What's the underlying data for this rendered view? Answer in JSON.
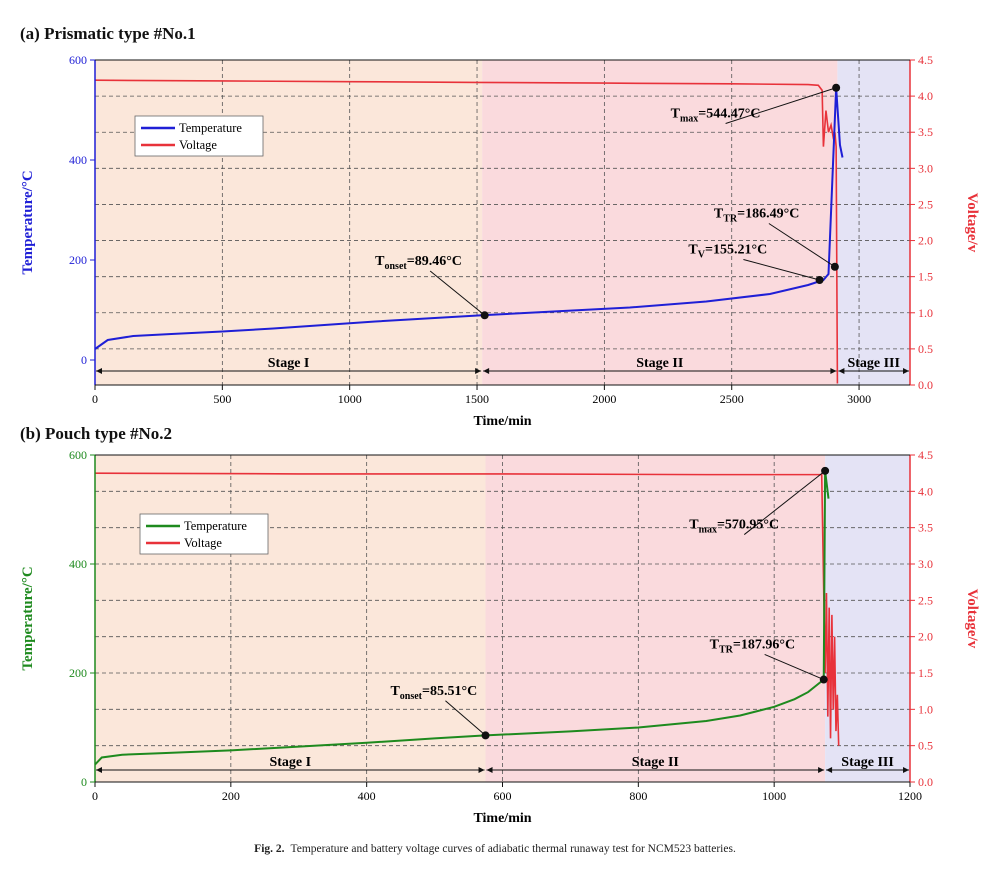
{
  "caption": {
    "label": "Fig. 2.",
    "text": "Temperature and battery voltage curves of adiabatic thermal runaway test for NCM523 batteries."
  },
  "chart_data": [
    {
      "type": "line",
      "title": "(a) Prismatic type #No.1",
      "xlabel": "Time/min",
      "ylabel": "Temperature/°C",
      "ylabel_right": "Voltage/v",
      "xlim": [
        0,
        3200
      ],
      "ylim": [
        -50,
        600
      ],
      "ylim_right": [
        0,
        4.5
      ],
      "xticks": [
        0,
        500,
        1000,
        1500,
        2000,
        2500,
        3000
      ],
      "yticks": [
        0,
        200,
        400,
        600
      ],
      "yticks_right": [
        "0.0",
        "0.5",
        "1.0",
        "1.5",
        "2.0",
        "2.5",
        "3.0",
        "3.5",
        "4.0",
        "4.5"
      ],
      "grid": true,
      "legend_placement": "upper-left",
      "colors": {
        "temperature": "#1f1fd6",
        "voltage": "#e8323a",
        "stage1": "#fbe7da",
        "stage2": "#fadadd",
        "stage3": "#e4e3f5"
      },
      "stages": [
        {
          "label": "Stage I",
          "x_start": 0,
          "x_end": 1520
        },
        {
          "label": "Stage II",
          "x_start": 1520,
          "x_end": 2915
        },
        {
          "label": "Stage III",
          "x_start": 2915,
          "x_end": 3200
        }
      ],
      "series": [
        {
          "name": "Temperature",
          "axis": "left",
          "x": [
            0,
            50,
            150,
            300,
            500,
            700,
            900,
            1100,
            1300,
            1520,
            1800,
            2100,
            2400,
            2650,
            2800,
            2860,
            2880,
            2910,
            2925,
            2935
          ],
          "y": [
            22,
            40,
            48,
            52,
            57,
            63,
            70,
            77,
            83,
            89.46,
            97,
            105,
            117,
            132,
            150,
            160,
            172,
            544.47,
            430,
            405
          ]
        },
        {
          "name": "Voltage",
          "axis": "right",
          "x": [
            0,
            500,
            1000,
            1500,
            2000,
            2500,
            2800,
            2840,
            2855,
            2860,
            2870,
            2880,
            2890,
            2900,
            2905,
            2910,
            2915
          ],
          "y": [
            4.22,
            4.21,
            4.2,
            4.19,
            4.18,
            4.17,
            4.16,
            4.15,
            4.08,
            3.3,
            3.8,
            3.5,
            3.6,
            3.4,
            3.5,
            3.3,
            0.02
          ]
        }
      ],
      "annotations": [
        {
          "label": "T",
          "sub": "onset",
          "value": "=89.46°C",
          "x": 1530,
          "y": 89.46,
          "text_x": 1100,
          "text_y": 190
        },
        {
          "label": "T",
          "sub": "V",
          "value": "=155.21°C",
          "x": 2845,
          "y": 160,
          "text_x": 2330,
          "text_y": 213
        },
        {
          "label": "T",
          "sub": "TR",
          "value": "=186.49°C",
          "x": 2905,
          "y": 186.49,
          "text_x": 2430,
          "text_y": 285
        },
        {
          "label": "T",
          "sub": "max",
          "value": "=544.47°C",
          "x": 2910,
          "y": 544.47,
          "text_x": 2260,
          "text_y": 485
        }
      ]
    },
    {
      "type": "line",
      "title": "(b) Pouch type #No.2",
      "xlabel": "Time/min",
      "ylabel": "Temperature/°C",
      "ylabel_right": "Voltage/v",
      "xlim": [
        0,
        1200
      ],
      "ylim": [
        0,
        600
      ],
      "ylim_right": [
        0,
        4.5
      ],
      "xticks": [
        0,
        200,
        400,
        600,
        800,
        1000,
        1200
      ],
      "yticks": [
        0,
        200,
        400,
        600
      ],
      "yticks_right": [
        "0.0",
        "0.5",
        "1.0",
        "1.5",
        "2.0",
        "2.5",
        "3.0",
        "3.5",
        "4.0",
        "4.5"
      ],
      "grid": true,
      "legend_placement": "upper-left",
      "colors": {
        "temperature": "#1e8a1e",
        "voltage": "#e8323a",
        "stage1": "#fbe7da",
        "stage2": "#fadadd",
        "stage3": "#e4e3f5"
      },
      "stages": [
        {
          "label": "Stage I",
          "x_start": 0,
          "x_end": 575
        },
        {
          "label": "Stage II",
          "x_start": 575,
          "x_end": 1075
        },
        {
          "label": "Stage III",
          "x_start": 1075,
          "x_end": 1200
        }
      ],
      "series": [
        {
          "name": "Temperature",
          "axis": "left",
          "x": [
            0,
            10,
            40,
            100,
            200,
            300,
            400,
            500,
            575,
            700,
            800,
            900,
            950,
            1000,
            1030,
            1050,
            1065,
            1073,
            1075,
            1080
          ],
          "y": [
            32,
            45,
            50,
            53,
            58,
            65,
            72,
            80,
            85.51,
            93,
            100,
            112,
            122,
            138,
            152,
            165,
            180,
            187.96,
            570.95,
            520
          ]
        },
        {
          "name": "Voltage",
          "axis": "right",
          "x": [
            0,
            300,
            600,
            900,
            1060,
            1070,
            1075,
            1077,
            1079,
            1081,
            1083,
            1085,
            1087,
            1089,
            1091,
            1093,
            1095
          ],
          "y": [
            4.25,
            4.24,
            4.24,
            4.23,
            4.23,
            4.23,
            1.5,
            2.6,
            0.9,
            2.4,
            0.6,
            2.3,
            1.0,
            2.0,
            0.7,
            1.2,
            0.5
          ]
        }
      ],
      "annotations": [
        {
          "label": "T",
          "sub": "onset",
          "value": "=85.51°C",
          "x": 575,
          "y": 85.51,
          "text_x": 435,
          "text_y": 160
        },
        {
          "label": "T",
          "sub": "TR",
          "value": "=187.96°C",
          "x": 1073,
          "y": 187.96,
          "text_x": 905,
          "text_y": 245
        },
        {
          "label": "T",
          "sub": "max",
          "value": "=570.95°C",
          "x": 1075,
          "y": 570.95,
          "text_x": 875,
          "text_y": 465
        }
      ]
    }
  ]
}
